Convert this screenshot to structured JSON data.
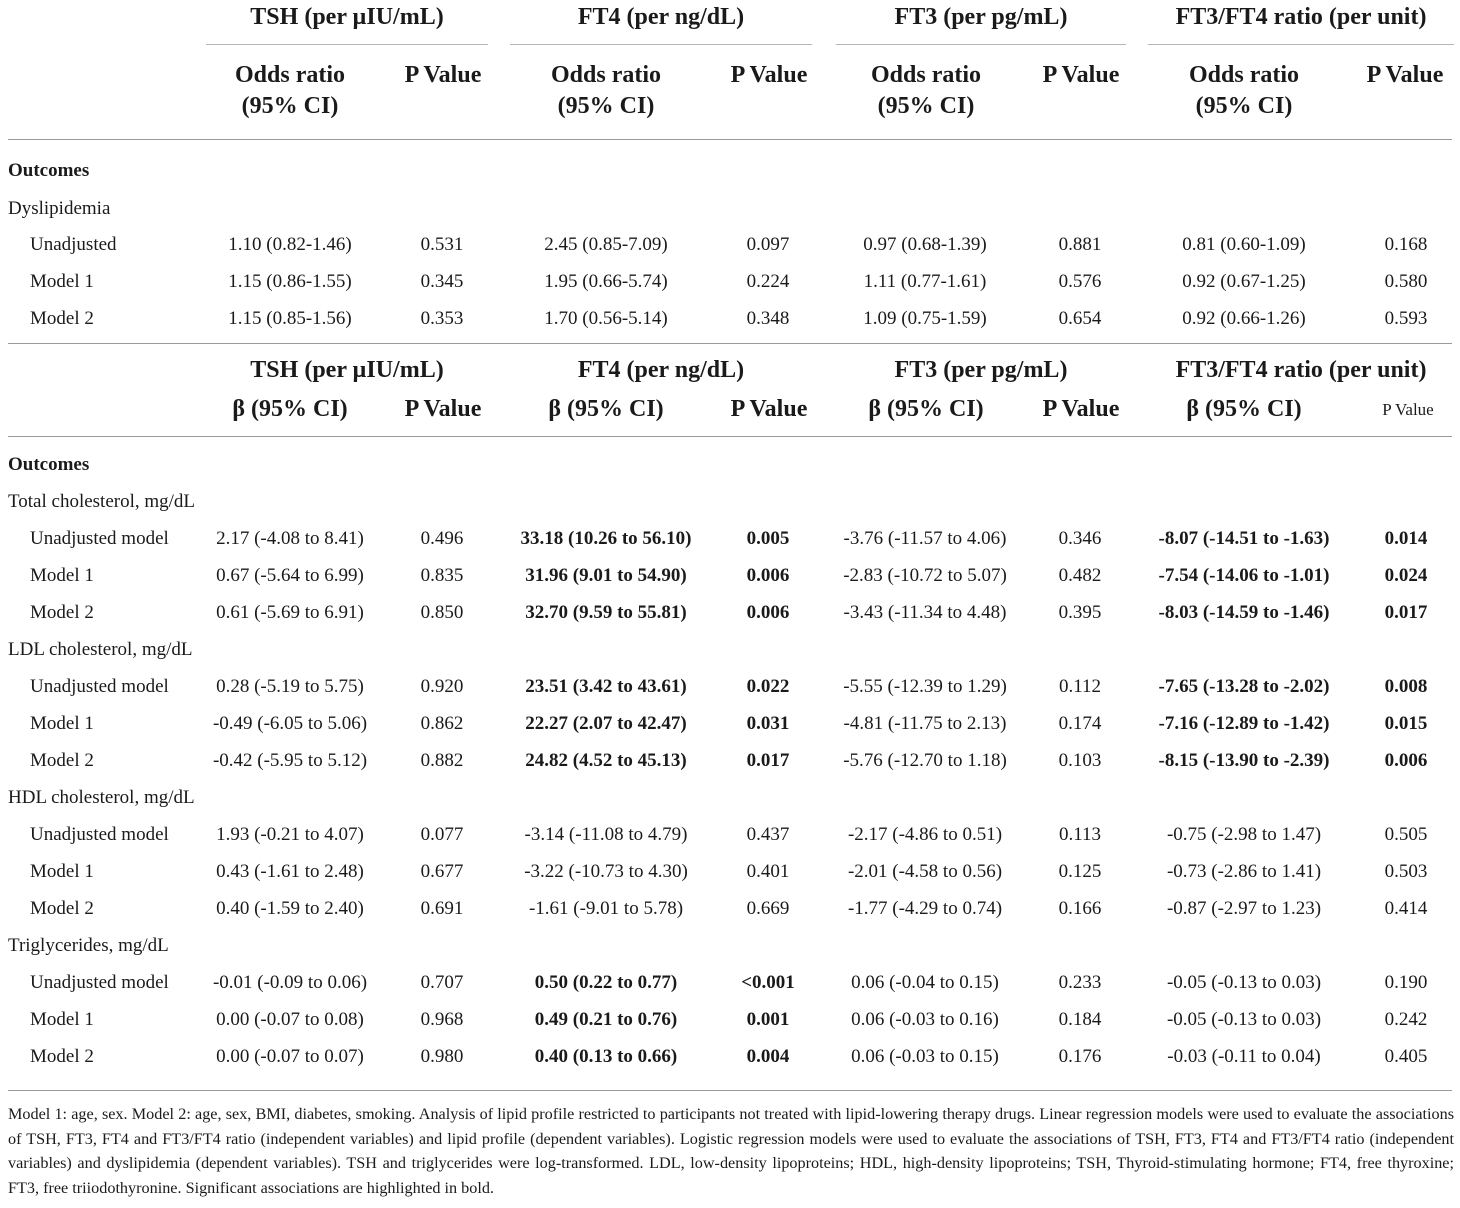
{
  "top_header": {
    "groups": [
      "TSH (per µIU/mL)",
      "FT4 (per ng/dL)",
      "FT3 (per pg/mL)",
      "FT3/FT4 ratio (per unit)"
    ],
    "or_label_line1": "Odds ratio",
    "or_label_line2": "(95% CI)",
    "p_label": "P Value"
  },
  "section1": {
    "outcomes_label": "Outcomes",
    "group_label": "Dyslipidemia",
    "rows": [
      {
        "label": "Unadjusted",
        "cells": [
          "1.10 (0.82-1.46)",
          "0.531",
          "2.45 (0.85-7.09)",
          "0.097",
          "0.97 (0.68-1.39)",
          "0.881",
          "0.81 (0.60-1.09)",
          "0.168"
        ]
      },
      {
        "label": "Model 1",
        "cells": [
          "1.15 (0.86-1.55)",
          "0.345",
          "1.95 (0.66-5.74)",
          "0.224",
          "1.11 (0.77-1.61)",
          "0.576",
          "0.92 (0.67-1.25)",
          "0.580"
        ]
      },
      {
        "label": "Model 2",
        "cells": [
          "1.15 (0.85-1.56)",
          "0.353",
          "1.70 (0.56-5.14)",
          "0.348",
          "1.09 (0.75-1.59)",
          "0.654",
          "0.92 (0.66-1.26)",
          "0.593"
        ]
      }
    ]
  },
  "second_header": {
    "groups": [
      "TSH (per µIU/mL)",
      "FT4 (per ng/dL)",
      "FT3 (per pg/mL)",
      "FT3/FT4 ratio (per unit)"
    ],
    "beta_label": "β (95% CI)",
    "p_label": "P Value",
    "p_label_last": "P Value"
  },
  "section2": {
    "outcomes_label": "Outcomes",
    "groups": [
      {
        "label": "Total cholesterol, mg/dL",
        "rows": [
          {
            "label": "Unadjusted model",
            "cells": [
              "2.17 (-4.08 to 8.41)",
              "0.496",
              "33.18 (10.26 to 56.10)",
              "0.005",
              "-3.76 (-11.57 to 4.06)",
              "0.346",
              "-8.07 (-14.51 to -1.63)",
              "0.014"
            ]
          },
          {
            "label": "Model 1",
            "cells": [
              "0.67 (-5.64 to 6.99)",
              "0.835",
              "31.96 (9.01 to 54.90)",
              "0.006",
              "-2.83 (-10.72 to 5.07)",
              "0.482",
              "-7.54 (-14.06 to -1.01)",
              "0.024"
            ]
          },
          {
            "label": "Model 2",
            "cells": [
              "0.61 (-5.69 to 6.91)",
              "0.850",
              "32.70 (9.59 to 55.81)",
              "0.006",
              "-3.43 (-11.34 to 4.48)",
              "0.395",
              "-8.03 (-14.59 to -1.46)",
              "0.017"
            ]
          }
        ]
      },
      {
        "label": "LDL cholesterol, mg/dL",
        "rows": [
          {
            "label": "Unadjusted model",
            "cells": [
              "0.28 (-5.19 to 5.75)",
              "0.920",
              "23.51 (3.42 to 43.61)",
              "0.022",
              "-5.55 (-12.39 to 1.29)",
              "0.112",
              "-7.65 (-13.28 to -2.02)",
              "0.008"
            ]
          },
          {
            "label": "Model 1",
            "cells": [
              "-0.49 (-6.05 to 5.06)",
              "0.862",
              "22.27 (2.07 to 42.47)",
              "0.031",
              "-4.81 (-11.75 to 2.13)",
              "0.174",
              "-7.16 (-12.89 to -1.42)",
              "0.015"
            ]
          },
          {
            "label": "Model 2",
            "cells": [
              "-0.42 (-5.95 to 5.12)",
              "0.882",
              "24.82 (4.52 to 45.13)",
              "0.017",
              "-5.76 (-12.70 to 1.18)",
              "0.103",
              "-8.15 (-13.90 to -2.39)",
              "0.006"
            ]
          }
        ]
      },
      {
        "label": "HDL cholesterol, mg/dL",
        "rows": [
          {
            "label": "Unadjusted model",
            "cells": [
              "1.93 (-0.21 to 4.07)",
              "0.077",
              "-3.14 (-11.08 to 4.79)",
              "0.437",
              "-2.17 (-4.86 to 0.51)",
              "0.113",
              "-0.75 (-2.98 to 1.47)",
              "0.505"
            ]
          },
          {
            "label": "Model 1",
            "cells": [
              "0.43 (-1.61 to 2.48)",
              "0.677",
              "-3.22 (-10.73 to 4.30)",
              "0.401",
              "-2.01 (-4.58 to 0.56)",
              "0.125",
              "-0.73 (-2.86 to 1.41)",
              "0.503"
            ]
          },
          {
            "label": "Model 2",
            "cells": [
              "0.40 (-1.59 to 2.40)",
              "0.691",
              "-1.61 (-9.01 to 5.78)",
              "0.669",
              "-1.77 (-4.29 to 0.74)",
              "0.166",
              "-0.87 (-2.97 to 1.23)",
              "0.414"
            ]
          }
        ]
      },
      {
        "label": "Triglycerides, mg/dL",
        "rows": [
          {
            "label": "Unadjusted model",
            "cells": [
              "-0.01 (-0.09 to 0.06)",
              "0.707",
              "0.50 (0.22 to 0.77)",
              "<0.001",
              "0.06 (-0.04 to 0.15)",
              "0.233",
              "-0.05 (-0.13 to 0.03)",
              "0.190"
            ]
          },
          {
            "label": "Model 1",
            "cells": [
              "0.00 (-0.07 to 0.08)",
              "0.968",
              "0.49 (0.21 to 0.76)",
              "0.001",
              "0.06 (-0.03 to 0.16)",
              "0.184",
              "-0.05 (-0.13 to 0.03)",
              "0.242"
            ]
          },
          {
            "label": "Model 2",
            "cells": [
              "0.00 (-0.07 to 0.07)",
              "0.980",
              "0.40 (0.13 to 0.66)",
              "0.004",
              "0.06 (-0.03 to 0.15)",
              "0.176",
              "-0.03 (-0.11 to 0.04)",
              "0.405"
            ]
          }
        ]
      }
    ]
  },
  "footnote": "Model 1: age, sex. Model 2: age, sex, BMI, diabetes, smoking. Analysis of lipid profile restricted to participants not treated with lipid-lowering therapy drugs. Linear regression models were used to evaluate the associations of TSH, FT3, FT4 and FT3/FT4 ratio (independent variables) and lipid profile (dependent variables). Logistic regression models were used to evaluate the associations of TSH, FT3, FT4 and FT3/FT4 ratio (independent variables) and dyslipidemia (dependent variables). TSH and triglycerides were log-transformed. LDL, low-density lipoproteins; HDL, high-density lipoproteins; TSH, Thyroid-stimulating hormone; FT4, free thyroxine; FT3, free triiodothyronine. Significant associations are highlighted in bold."
}
